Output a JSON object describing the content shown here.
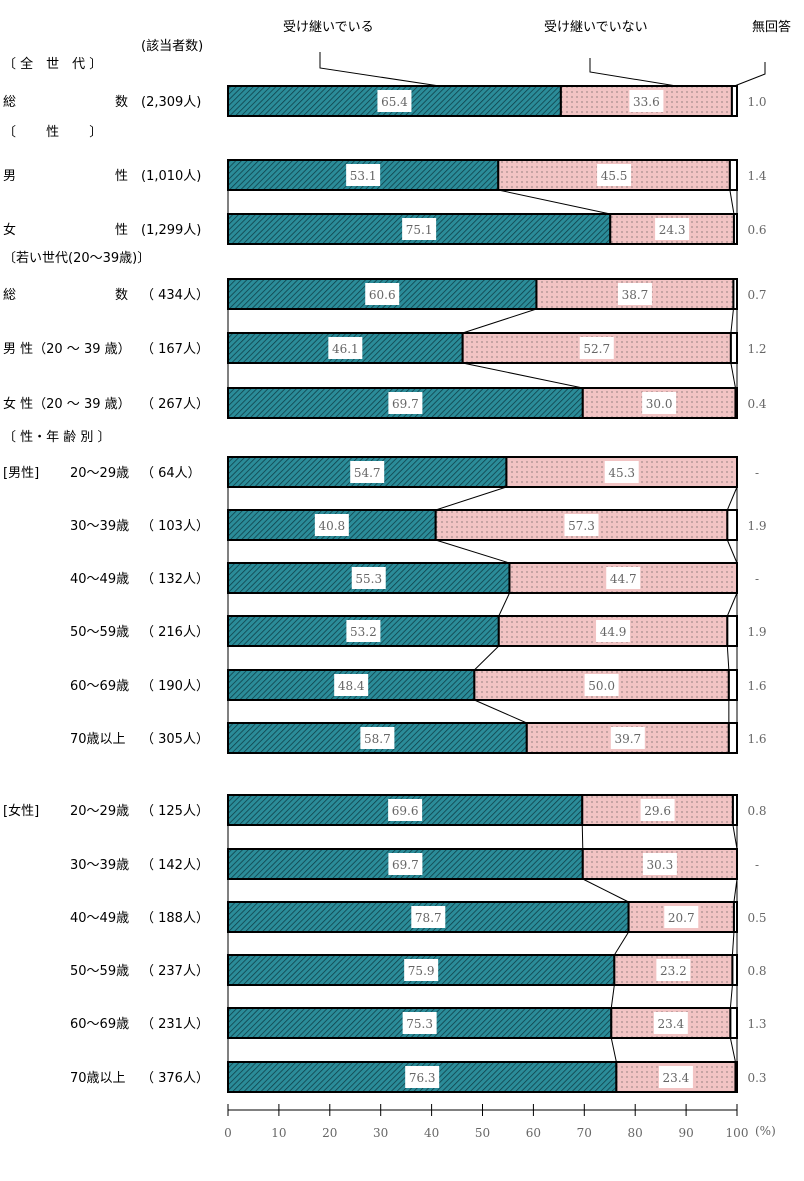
{
  "chart_data": {
    "type": "bar",
    "orientation": "horizontal-stacked-percent",
    "legend": [
      "受け継いでいる",
      "受け継いでいない",
      "無回答"
    ],
    "count_header": "(該当者数)",
    "xlim": [
      0,
      100
    ],
    "xticks": [
      0,
      10,
      20,
      30,
      40,
      50,
      60,
      70,
      80,
      90,
      100
    ],
    "xunit": "(%)",
    "colors": {
      "inherited": "#2b8c99",
      "not_inherited": "#f2c4c4",
      "no_answer": "#ffffff"
    },
    "sections": [
      {
        "header": "〔 全　世　代 〕",
        "rows": [
          {
            "left": "総",
            "right": "数",
            "n": "(2,309人)",
            "values": [
              65.4,
              33.6,
              1.0
            ]
          }
        ]
      },
      {
        "header": "〔　　 性　　 〕",
        "rows": [
          {
            "left": "男",
            "right": "性",
            "n": "(1,010人)",
            "values": [
              53.1,
              45.5,
              1.4
            ]
          },
          {
            "left": "女",
            "right": "性",
            "n": "(1,299人)",
            "values": [
              75.1,
              24.3,
              0.6
            ]
          }
        ]
      },
      {
        "header": "〔若い世代(20～39歳)〕",
        "rows": [
          {
            "left": "総",
            "right": "数",
            "n": "（ 434人）",
            "values": [
              60.6,
              38.7,
              0.7
            ]
          },
          {
            "left": "男 性（20 ～ 39 歳）",
            "right": "",
            "n": "（ 167人）",
            "values": [
              46.1,
              52.7,
              1.2
            ]
          },
          {
            "left": "女 性（20 ～ 39 歳）",
            "right": "",
            "n": "（ 267人）",
            "values": [
              69.7,
              30.0,
              0.4
            ]
          }
        ]
      },
      {
        "header": "〔 性・年 齢 別 〕",
        "group": "[男性]",
        "rows": [
          {
            "left": "",
            "right": "20～29歳",
            "n": "（  64人）",
            "values": [
              54.7,
              45.3,
              null
            ]
          },
          {
            "left": "",
            "right": "30～39歳",
            "n": "（ 103人）",
            "values": [
              40.8,
              57.3,
              1.9
            ]
          },
          {
            "left": "",
            "right": "40～49歳",
            "n": "（ 132人）",
            "values": [
              55.3,
              44.7,
              null
            ]
          },
          {
            "left": "",
            "right": "50～59歳",
            "n": "（ 216人）",
            "values": [
              53.2,
              44.9,
              1.9
            ]
          },
          {
            "left": "",
            "right": "60～69歳",
            "n": "（ 190人）",
            "values": [
              48.4,
              50.0,
              1.6
            ]
          },
          {
            "left": "",
            "right": "70歳以上",
            "n": "（ 305人）",
            "values": [
              58.7,
              39.7,
              1.6
            ]
          }
        ]
      },
      {
        "header": "",
        "group": "[女性]",
        "rows": [
          {
            "left": "",
            "right": "20～29歳",
            "n": "（ 125人）",
            "values": [
              69.6,
              29.6,
              0.8
            ]
          },
          {
            "left": "",
            "right": "30～39歳",
            "n": "（ 142人）",
            "values": [
              69.7,
              30.3,
              null
            ]
          },
          {
            "left": "",
            "right": "40～49歳",
            "n": "（ 188人）",
            "values": [
              78.7,
              20.7,
              0.5
            ]
          },
          {
            "left": "",
            "right": "50～59歳",
            "n": "（ 237人）",
            "values": [
              75.9,
              23.2,
              0.8
            ]
          },
          {
            "left": "",
            "right": "60～69歳",
            "n": "（ 231人）",
            "values": [
              75.3,
              23.4,
              1.3
            ]
          },
          {
            "left": "",
            "right": "70歳以上",
            "n": "（ 376人）",
            "values": [
              76.3,
              23.4,
              0.3
            ]
          }
        ]
      }
    ],
    "missing_label": "-"
  }
}
